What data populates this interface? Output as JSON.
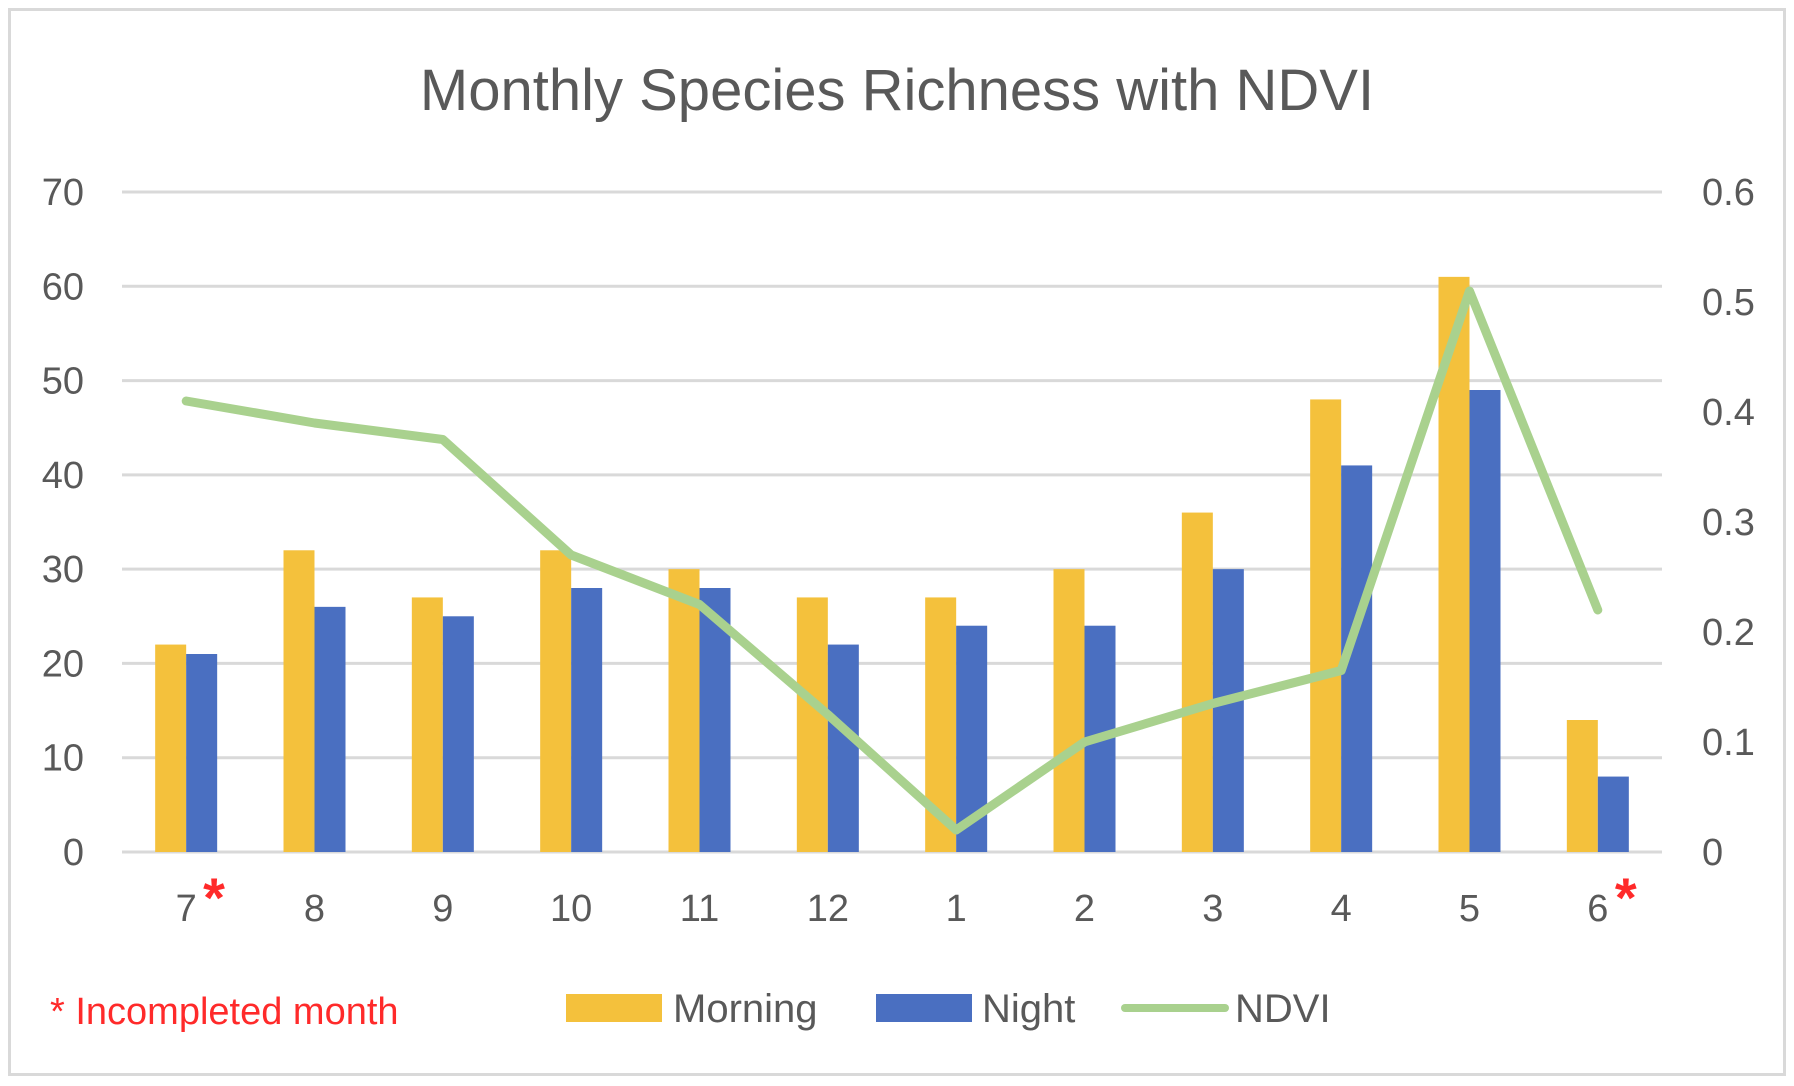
{
  "chart_data": {
    "type": "bar",
    "title": "Monthly Species Richness with NDVI",
    "categories": [
      "7",
      "8",
      "9",
      "10",
      "11",
      "12",
      "1",
      "2",
      "3",
      "4",
      "5",
      "6"
    ],
    "series": [
      {
        "name": "Morning",
        "type": "bar",
        "axis": "left",
        "color": "#f4c13c",
        "values": [
          22,
          32,
          27,
          32,
          30,
          27,
          27,
          30,
          36,
          48,
          61,
          14
        ]
      },
      {
        "name": "Night",
        "type": "bar",
        "axis": "left",
        "color": "#4a6fc1",
        "values": [
          21,
          26,
          25,
          28,
          28,
          22,
          24,
          24,
          30,
          41,
          49,
          8
        ]
      },
      {
        "name": "NDVI",
        "type": "line",
        "axis": "right",
        "color": "#a9d18e",
        "values": [
          0.41,
          0.39,
          0.375,
          0.27,
          0.225,
          0.125,
          0.02,
          0.1,
          0.135,
          0.165,
          0.51,
          0.22
        ]
      }
    ],
    "left_axis": {
      "min": 0,
      "max": 70,
      "ticks": [
        "0",
        "10",
        "20",
        "30",
        "40",
        "50",
        "60",
        "70"
      ]
    },
    "right_axis": {
      "min": 0,
      "max": 0.6,
      "ticks": [
        "0",
        "0.1",
        "0.2",
        "0.3",
        "0.4",
        "0.5",
        "0.6"
      ]
    },
    "grid": true,
    "legend_position": "bottom",
    "incomplete_marker": "*",
    "incomplete_categories": [
      "7",
      "6"
    ],
    "note": "* Incompleted month",
    "note_color": "#ff2a2a"
  }
}
